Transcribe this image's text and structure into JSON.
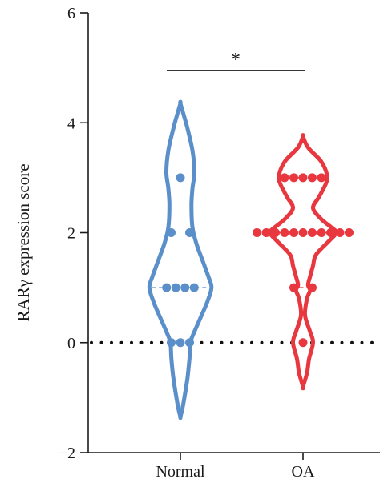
{
  "chart_data": {
    "type": "violin",
    "xlabel": "",
    "ylabel": "RARγ expression score",
    "ylim": [
      -2,
      6
    ],
    "yticks": [
      -2,
      0,
      2,
      4,
      6
    ],
    "ytick_labels": [
      "−2",
      "0",
      "2",
      "4",
      "6"
    ],
    "categories": [
      "Normal",
      "OA"
    ],
    "reference_line": {
      "y": 0,
      "style": "dotted"
    },
    "series": [
      {
        "category": "Normal",
        "color": "#5b8fc9",
        "violin_range": [
          -1.35,
          4.35
        ],
        "median": 1,
        "points": [
          3,
          2,
          2,
          1,
          1,
          1,
          1,
          0,
          0,
          0
        ]
      },
      {
        "category": "OA",
        "color": "#e8373e",
        "violin_range": [
          -0.8,
          3.75
        ],
        "median": 2,
        "quartiles": [
          1,
          3
        ],
        "points": [
          3,
          3,
          3,
          3,
          3,
          2,
          2,
          2,
          2,
          2,
          2,
          2,
          2,
          2,
          2,
          2,
          1,
          1,
          0
        ]
      }
    ],
    "annotations": [
      {
        "type": "significance",
        "text": "*",
        "between": [
          "Normal",
          "OA"
        ],
        "y": 4.95
      }
    ]
  }
}
